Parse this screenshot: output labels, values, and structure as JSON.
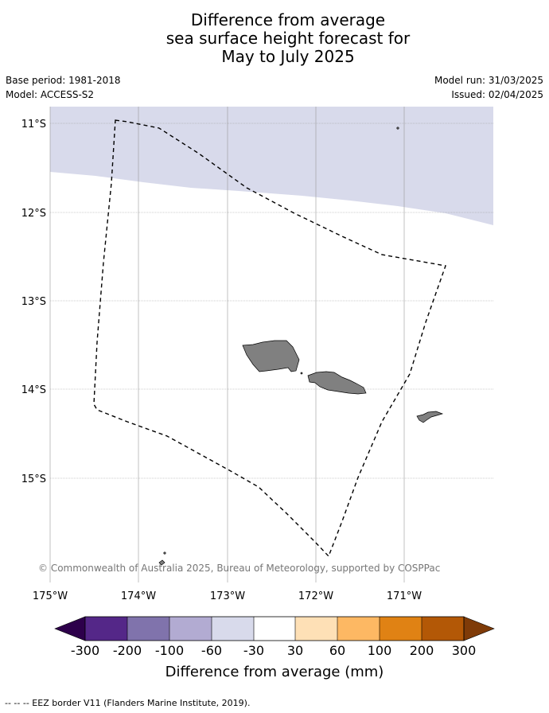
{
  "title_lines": [
    "Difference from average",
    "sea surface height forecast for",
    "May to July 2025"
  ],
  "base_period": "Base period: 1981-2018",
  "model": "Model: ACCESS-S2",
  "model_run": "Model run: 31/03/2025",
  "issued": "Issued: 02/04/2025",
  "latitude_labels": [
    "11°S",
    "12°S",
    "13°S",
    "14°S",
    "15°S"
  ],
  "longitude_labels": [
    "175°W",
    "174°W",
    "173°W",
    "172°W",
    "171°W"
  ],
  "copyright": "© Commonwealth of Australia 2025, Bureau of Meteorology, supported by COSPPac",
  "colorbar": {
    "tick_labels": [
      "-300",
      "-200",
      "-100",
      "-60",
      "-30",
      "30",
      "60",
      "100",
      "200",
      "300"
    ],
    "colors": [
      "#2d004b",
      "#542788",
      "#8073ac",
      "#b2abd2",
      "#d8daeb",
      "#ffffff",
      "#fee0b6",
      "#fdb863",
      "#e08214",
      "#b35806",
      "#7f3b08"
    ],
    "label": "Difference from average (mm)"
  },
  "anomaly_region_color": "#d8daeb",
  "land_color": "#808080",
  "footnote": "--  --  -- EEZ border V11 (Flanders Marine Institute, 2019)."
}
